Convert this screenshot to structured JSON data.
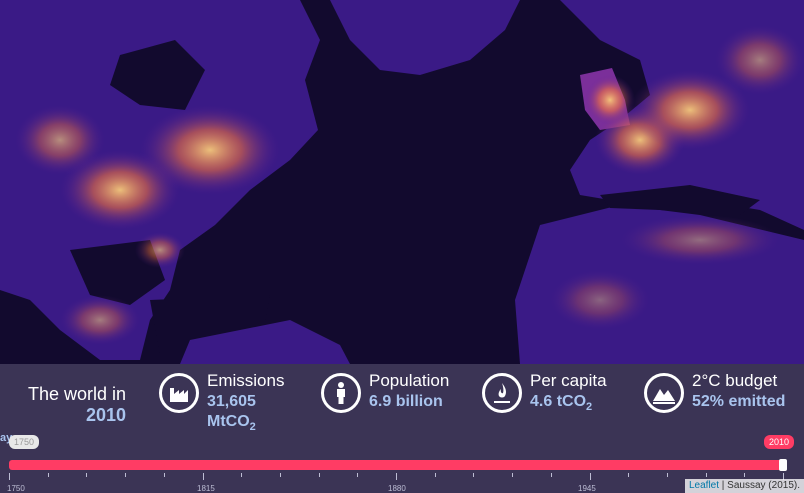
{
  "summary": {
    "world_label": "The world in",
    "year": "2010"
  },
  "stats": [
    {
      "icon": "factory-icon",
      "title": "Emissions",
      "value_line1": "31,605",
      "value_unit": "MtCO",
      "value_sub": "2"
    },
    {
      "icon": "person-icon",
      "title": "Population",
      "value": "6.9 billion"
    },
    {
      "icon": "flame-icon",
      "title": "Per capita",
      "value": "4.6 tCO",
      "value_sub": "2"
    },
    {
      "icon": "mountain-icon",
      "title": "2°C budget",
      "value": "52% emitted"
    }
  ],
  "timeline": {
    "start_label": "1750",
    "current_label": "2010",
    "min": 1750,
    "max": 2010,
    "value": 2010,
    "tick_labels": [
      "1750",
      "1815",
      "1880",
      "1945"
    ],
    "cut_label": "ay"
  },
  "attribution": {
    "leaflet": "Leaflet",
    "separator": " | ",
    "source": "Saussay (2015)."
  },
  "colors": {
    "ocean": "#120a2e",
    "land": "#3a1a86",
    "hot": "#ffb347",
    "accent": "#ff3c64",
    "value_text": "#a9c4ee"
  }
}
